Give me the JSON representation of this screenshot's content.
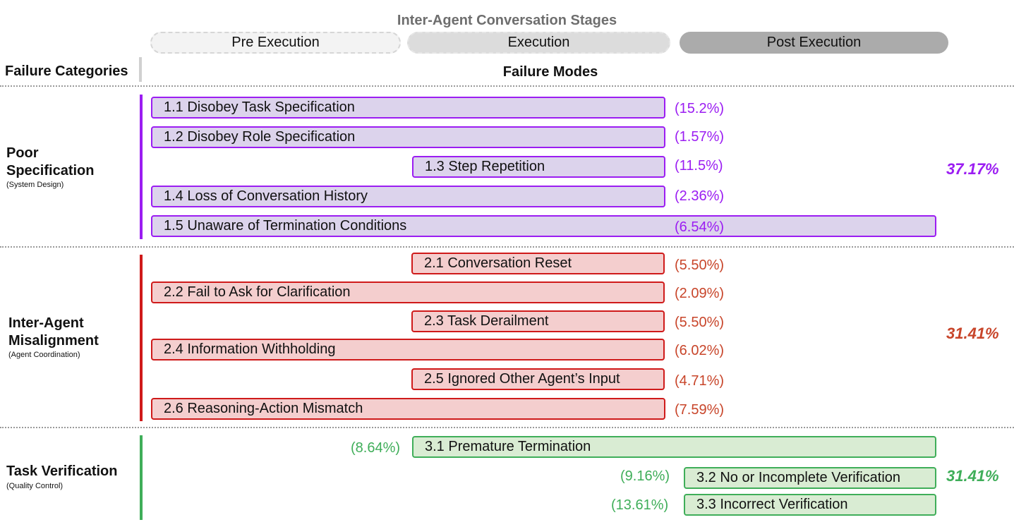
{
  "stages": {
    "title": "Inter-Agent Conversation Stages",
    "pre": "Pre Execution",
    "execution": "Execution",
    "post": "Post Execution"
  },
  "headers": {
    "categories": "Failure Categories",
    "modes": "Failure Modes"
  },
  "colors": {
    "poor_specification": "#9b1df2",
    "inter_agent_misalignment": "#cf1a1a",
    "task_verification": "#3fae59"
  },
  "categories": [
    {
      "name_line1": "Poor",
      "name_line2": "Specification",
      "subtitle": "(System Design)",
      "percent": "37.17%",
      "modes": [
        {
          "label": "1.1 Disobey Task Specification",
          "percent": "(15.2%)"
        },
        {
          "label": "1.2 Disobey Role Specification",
          "percent": "(1.57%)"
        },
        {
          "label": "1.3 Step Repetition",
          "percent": "(11.5%)"
        },
        {
          "label": "1.4 Loss of Conversation History",
          "percent": "(2.36%)"
        },
        {
          "label": "1.5 Unaware of Termination Conditions",
          "percent": "(6.54%)"
        }
      ]
    },
    {
      "name_line1": "Inter-Agent",
      "name_line2": "Misalignment",
      "subtitle": "(Agent Coordination)",
      "percent": "31.41%",
      "modes": [
        {
          "label": "2.1 Conversation Reset",
          "percent": "(5.50%)"
        },
        {
          "label": "2.2 Fail to Ask for Clarification",
          "percent": "(2.09%)"
        },
        {
          "label": "2.3 Task Derailment",
          "percent": "(5.50%)"
        },
        {
          "label": "2.4 Information Withholding",
          "percent": "(6.02%)"
        },
        {
          "label": "2.5 Ignored Other Agent’s Input",
          "percent": "(4.71%)"
        },
        {
          "label": "2.6 Reasoning-Action Mismatch",
          "percent": "(7.59%)"
        }
      ]
    },
    {
      "name_line1": "Task Verification",
      "subtitle": "(Quality Control)",
      "percent": "31.41%",
      "modes": [
        {
          "label": "3.1  Premature Termination",
          "percent": "(8.64%)"
        },
        {
          "label": "3.2 No or Incomplete Verification",
          "percent": "(9.16%)"
        },
        {
          "label": "3.3 Incorrect Verification",
          "percent": "(13.61%)"
        }
      ]
    }
  ]
}
